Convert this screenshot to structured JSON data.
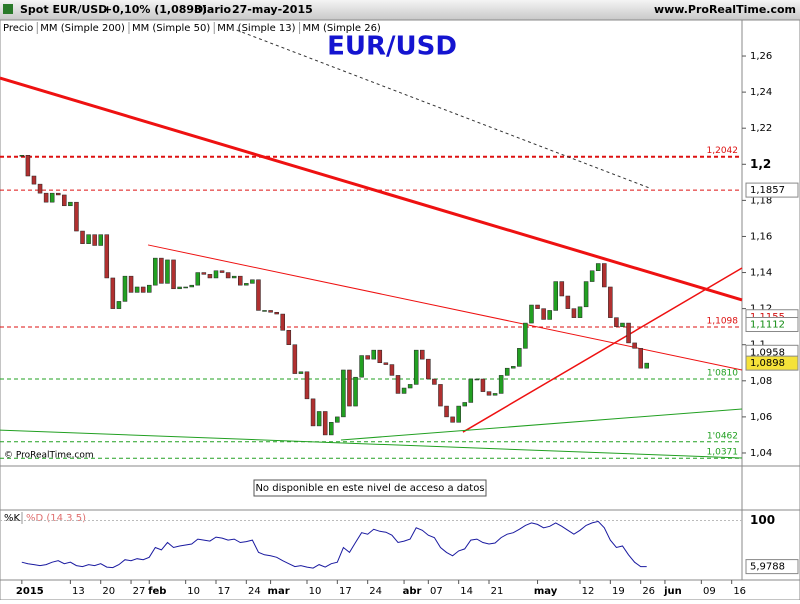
{
  "header": {
    "instrument": "Spot EUR/USD",
    "change": "+0,10% (1,0898)",
    "period": "Diario",
    "date": "27-may-2015",
    "site": "www.ProRealTime.com"
  },
  "indicators": [
    "Precio",
    "MM (Simple 200)",
    "MM (Simple 50)",
    "MM (Simple 13)",
    "MM (Simple 26)"
  ],
  "indicator_colors": [
    "#000000",
    "#000000",
    "#1a1aa0",
    "#d01010",
    "#108a10"
  ],
  "copyright": "© ProRealTime.com",
  "volume_message": "No disponible en este nivel de acceso a datos",
  "chart_data": [
    {
      "type": "candlestick",
      "title": "EUR/USD",
      "title_color": "#1414d0",
      "up_color": "#22a022",
      "down_color": "#b03030",
      "values": [
        1.205,
        1.1935,
        1.189,
        1.184,
        1.179,
        1.184,
        1.183,
        1.177,
        1.179,
        1.163,
        1.156,
        1.161,
        1.155,
        1.161,
        1.137,
        1.12,
        1.124,
        1.138,
        1.129,
        1.132,
        1.129,
        1.133,
        1.148,
        1.134,
        1.147,
        1.131,
        1.132,
        1.132,
        1.133,
        1.14,
        1.139,
        1.137,
        1.141,
        1.14,
        1.137,
        1.138,
        1.133,
        1.134,
        1.136,
        1.119,
        1.119,
        1.118,
        1.117,
        1.108,
        1.1,
        1.084,
        1.085,
        1.07,
        1.055,
        1.063,
        1.05,
        1.057,
        1.06,
        1.086,
        1.066,
        1.082,
        1.094,
        1.092,
        1.097,
        1.09,
        1.089,
        1.083,
        1.073,
        1.076,
        1.078,
        1.097,
        1.092,
        1.081,
        1.078,
        1.066,
        1.06,
        1.057,
        1.066,
        1.068,
        1.081,
        1.081,
        1.074,
        1.072,
        1.073,
        1.083,
        1.087,
        1.088,
        1.098,
        1.112,
        1.122,
        1.12,
        1.114,
        1.119,
        1.135,
        1.127,
        1.12,
        1.115,
        1.121,
        1.135,
        1.141,
        1.145,
        1.132,
        1.115,
        1.11,
        1.112,
        1.101,
        1.098,
        1.087,
        1.0898
      ],
      "xlim": [
        -3.6,
        118.7
      ],
      "xticks": [
        {
          "value": 0,
          "label": "2015"
        },
        {
          "value": 8,
          "label": "13"
        },
        {
          "value": 13,
          "label": "20"
        },
        {
          "value": 18,
          "label": "27"
        },
        {
          "value": 21,
          "label": "feb"
        },
        {
          "value": 27,
          "label": "10"
        },
        {
          "value": 32,
          "label": "17"
        },
        {
          "value": 37,
          "label": "24"
        },
        {
          "value": 41,
          "label": "mar"
        },
        {
          "value": 47,
          "label": "10"
        },
        {
          "value": 52,
          "label": "17"
        },
        {
          "value": 57,
          "label": "24"
        },
        {
          "value": 63,
          "label": "abr"
        },
        {
          "value": 67,
          "label": "07"
        },
        {
          "value": 72,
          "label": "14"
        },
        {
          "value": 77,
          "label": "21"
        },
        {
          "value": 85,
          "label": "may"
        },
        {
          "value": 92,
          "label": "12"
        },
        {
          "value": 97,
          "label": "19"
        },
        {
          "value": 102,
          "label": "26"
        },
        {
          "value": 106,
          "label": "jun"
        },
        {
          "value": 112,
          "label": "09"
        },
        {
          "value": 117,
          "label": "16"
        }
      ],
      "ylim": [
        1.035,
        1.2711
      ],
      "yticks": [
        {
          "value": 1.04,
          "label": "1,04"
        },
        {
          "value": 1.06,
          "label": "1,06"
        },
        {
          "value": 1.08,
          "label": "1,08"
        },
        {
          "value": 1.1,
          "label": "1,1"
        },
        {
          "value": 1.12,
          "label": "1,12"
        },
        {
          "value": 1.14,
          "label": "1,14"
        },
        {
          "value": 1.16,
          "label": "1,16"
        },
        {
          "value": 1.18,
          "label": "1,18"
        },
        {
          "value": 1.2,
          "label": "1,2"
        },
        {
          "value": 1.22,
          "label": "1,22"
        },
        {
          "value": 1.24,
          "label": "1,24"
        },
        {
          "value": 1.26,
          "label": "1,26"
        }
      ],
      "levels": [
        {
          "value": 1.2042,
          "label": "1,2042",
          "color": "#dd1111"
        },
        {
          "value": 1.1857,
          "color": "#dd1111"
        },
        {
          "value": 1.1098,
          "label": "1,1098",
          "color": "#dd1111"
        },
        {
          "value": 1.081,
          "label": "1'0810",
          "color": "#22a022"
        },
        {
          "value": 1.0462,
          "label": "1'0462",
          "color": "#22a022"
        },
        {
          "value": 1.0371,
          "label": "1,0371",
          "color": "#22a022"
        }
      ],
      "trendlines": [
        {
          "x": [
            -3.6,
            118.7
          ],
          "y": [
            1.2478,
            1.1248
          ],
          "color": "#ee1111",
          "width": 3
        },
        {
          "x": [
            20.8,
            118.7
          ],
          "y": [
            1.1553,
            1.086
          ],
          "color": "#ee1111",
          "width": 1
        },
        {
          "x": [
            72.7,
            118.7
          ],
          "y": [
            1.0516,
            1.1425
          ],
          "color": "#ee1111",
          "width": 1.5
        },
        {
          "x": [
            -3.6,
            118.7
          ],
          "y": [
            1.0527,
            1.0372
          ],
          "color": "#22a022",
          "width": 1
        },
        {
          "x": [
            52.6,
            118.7
          ],
          "y": [
            1.0472,
            1.0644
          ],
          "color": "#22a022",
          "width": 1
        },
        {
          "x": [
            35.4,
            103.5
          ],
          "y": [
            1.2744,
            1.1868
          ],
          "color": "#333333",
          "width": 1
        }
      ],
      "price_boxes": [
        {
          "value": 1.1857,
          "label": "1,1857",
          "color": "#000000"
        },
        {
          "value": 1.1155,
          "label": "1,1155",
          "color": "#d01010"
        },
        {
          "value": 1.1112,
          "label": "1,1112",
          "color": "#108a10"
        },
        {
          "value": 1.0958,
          "label": "1,0958",
          "color": "#000000"
        },
        {
          "value": 1.0898,
          "label": "1,0898",
          "color": "#000000",
          "highlight": "#f5e23a"
        }
      ]
    },
    {
      "type": "line",
      "legend": [
        "%K",
        "%D (14 3 5)"
      ],
      "legend_colors": [
        "#000000",
        "#e07070"
      ],
      "color": "#1a1aa0",
      "values": [
        15,
        12,
        10,
        8,
        10,
        15,
        18,
        12,
        15,
        8,
        6,
        10,
        8,
        12,
        5,
        4,
        10,
        20,
        18,
        22,
        20,
        25,
        45,
        40,
        55,
        45,
        48,
        50,
        52,
        62,
        60,
        58,
        66,
        64,
        60,
        62,
        55,
        57,
        60,
        35,
        30,
        28,
        25,
        18,
        12,
        6,
        8,
        5,
        3,
        10,
        5,
        12,
        15,
        45,
        35,
        55,
        75,
        72,
        82,
        78,
        76,
        70,
        55,
        58,
        62,
        85,
        80,
        70,
        65,
        45,
        35,
        28,
        38,
        42,
        60,
        62,
        55,
        52,
        54,
        65,
        72,
        75,
        82,
        90,
        95,
        92,
        85,
        88,
        95,
        88,
        80,
        72,
        80,
        90,
        95,
        98,
        85,
        60,
        45,
        48,
        30,
        15,
        6,
        5.9788
      ],
      "last_label": "5,9788",
      "ylim": [
        -5,
        105
      ],
      "yticks": [
        100
      ]
    }
  ]
}
